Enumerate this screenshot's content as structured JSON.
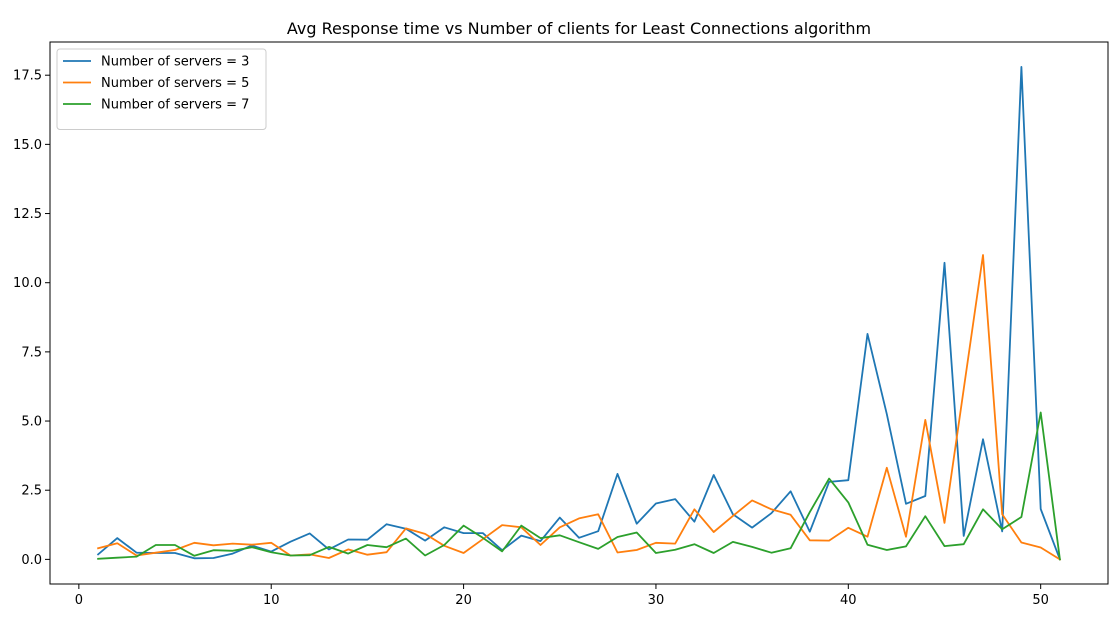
{
  "chart_data": {
    "type": "line",
    "title": "Avg Response time vs Number of clients for Least Connections algorithm",
    "xlabel": "",
    "ylabel": "",
    "xlim": [
      -1.5,
      53.5
    ],
    "ylim": [
      -0.89,
      18.7
    ],
    "xticks": [
      0,
      10,
      20,
      30,
      40,
      50
    ],
    "yticks": [
      0.0,
      2.5,
      5.0,
      7.5,
      10.0,
      12.5,
      15.0,
      17.5
    ],
    "ytick_labels": [
      "0.0",
      "2.5",
      "5.0",
      "7.5",
      "10.0",
      "12.5",
      "15.0",
      "17.5"
    ],
    "grid": false,
    "legend_position": "top-left",
    "x": [
      1,
      2,
      3,
      4,
      5,
      6,
      7,
      8,
      9,
      10,
      11,
      12,
      13,
      14,
      15,
      16,
      17,
      18,
      19,
      20,
      21,
      22,
      23,
      24,
      25,
      26,
      27,
      28,
      29,
      30,
      31,
      32,
      33,
      34,
      35,
      36,
      37,
      38,
      39,
      40,
      41,
      42,
      43,
      44,
      45,
      46,
      47,
      48,
      49,
      50,
      51
    ],
    "series": [
      {
        "name": "Number of servers = 3",
        "color": "#1f77b4",
        "values": [
          0.18,
          0.77,
          0.24,
          0.23,
          0.23,
          0.04,
          0.05,
          0.21,
          0.5,
          0.28,
          0.64,
          0.94,
          0.36,
          0.72,
          0.71,
          1.27,
          1.11,
          0.68,
          1.16,
          0.95,
          0.95,
          0.33,
          0.86,
          0.66,
          1.51,
          0.78,
          1.02,
          3.09,
          1.29,
          2.02,
          2.18,
          1.36,
          3.05,
          1.63,
          1.15,
          1.67,
          2.46,
          1.0,
          2.8,
          2.86,
          8.15,
          5.25,
          2.01,
          2.29,
          10.72,
          0.85,
          4.34,
          1.01,
          17.8,
          1.82,
          0
        ]
      },
      {
        "name": "Number of servers = 5",
        "color": "#ff7f0e",
        "values": [
          0.4,
          0.58,
          0.14,
          0.24,
          0.34,
          0.6,
          0.51,
          0.57,
          0.53,
          0.6,
          0.14,
          0.18,
          0.05,
          0.36,
          0.17,
          0.26,
          1.12,
          0.92,
          0.49,
          0.23,
          0.73,
          1.24,
          1.16,
          0.52,
          1.16,
          1.48,
          1.63,
          0.25,
          0.34,
          0.6,
          0.57,
          1.81,
          0.99,
          1.57,
          2.13,
          1.81,
          1.61,
          0.69,
          0.68,
          1.14,
          0.82,
          3.31,
          0.82,
          5.04,
          1.32,
          6.15,
          11.0,
          1.63,
          0.61,
          0.43,
          0
        ]
      },
      {
        "name": "Number of servers = 7",
        "color": "#2ca02c",
        "values": [
          0.02,
          0.06,
          0.1,
          0.52,
          0.52,
          0.13,
          0.33,
          0.31,
          0.44,
          0.26,
          0.14,
          0.15,
          0.45,
          0.21,
          0.52,
          0.44,
          0.75,
          0.14,
          0.52,
          1.22,
          0.78,
          0.29,
          1.22,
          0.77,
          0.87,
          0.62,
          0.38,
          0.81,
          0.97,
          0.23,
          0.35,
          0.55,
          0.23,
          0.63,
          0.45,
          0.24,
          0.4,
          1.71,
          2.92,
          2.06,
          0.53,
          0.34,
          0.47,
          1.56,
          0.48,
          0.55,
          1.81,
          1.09,
          1.53,
          5.31,
          0
        ]
      }
    ]
  }
}
